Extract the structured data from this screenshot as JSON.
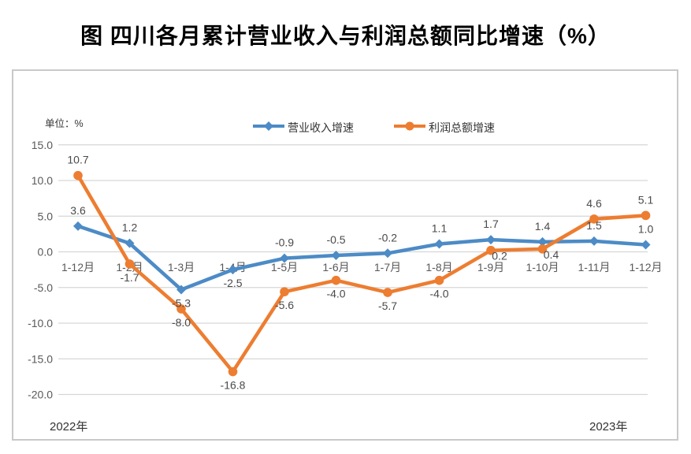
{
  "title": "图 四川各月累计营业收入与利润总额同比增速（%）",
  "chart_data": {
    "type": "line",
    "title": "图 四川各月累计营业收入与利润总额同比增速（%）",
    "unit_label": "单位：%",
    "xlabel": "",
    "ylabel": "%",
    "ylim": [
      -20,
      15
    ],
    "ytick_step": 5,
    "yticks": [
      "15.0",
      "10.0",
      "5.0",
      "0.0",
      "-5.0",
      "-10.0",
      "-15.0",
      "-20.0"
    ],
    "grid": true,
    "legend_position": "top-center",
    "categories": [
      "1-12月",
      "1-2月",
      "1-3月",
      "1-4月",
      "1-5月",
      "1-6月",
      "1-7月",
      "1-8月",
      "1-9月",
      "1-10月",
      "1-11月",
      "1-12月"
    ],
    "series": [
      {
        "name": "营业收入增速",
        "color": "#4C8BC6",
        "marker": "diamond",
        "values": [
          3.6,
          1.2,
          -5.3,
          -2.5,
          -0.9,
          -0.5,
          -0.2,
          1.1,
          1.7,
          1.4,
          1.5,
          1.0
        ],
        "label_positions": [
          "above",
          "above",
          "below",
          "below",
          "above",
          "above",
          "above",
          "above",
          "above",
          "above",
          "above",
          "above"
        ]
      },
      {
        "name": "利润总额增速",
        "color": "#ED7D31",
        "marker": "circle",
        "values": [
          10.7,
          -1.7,
          -8.0,
          -16.8,
          -5.6,
          -4.0,
          -5.7,
          -4.0,
          0.2,
          0.4,
          4.6,
          5.1
        ],
        "label_positions": [
          "above",
          "below",
          "below",
          "below",
          "below",
          "below",
          "below",
          "below",
          "below-right",
          "below-right",
          "above",
          "above"
        ]
      }
    ],
    "x_axis_years": {
      "left": "2022年",
      "right": "2023年"
    },
    "colors": {
      "gridline": "#d6d6d6",
      "axis_text": "#595959",
      "data_label_text": "#4a4a4a",
      "border": "#c9c9c9"
    }
  }
}
